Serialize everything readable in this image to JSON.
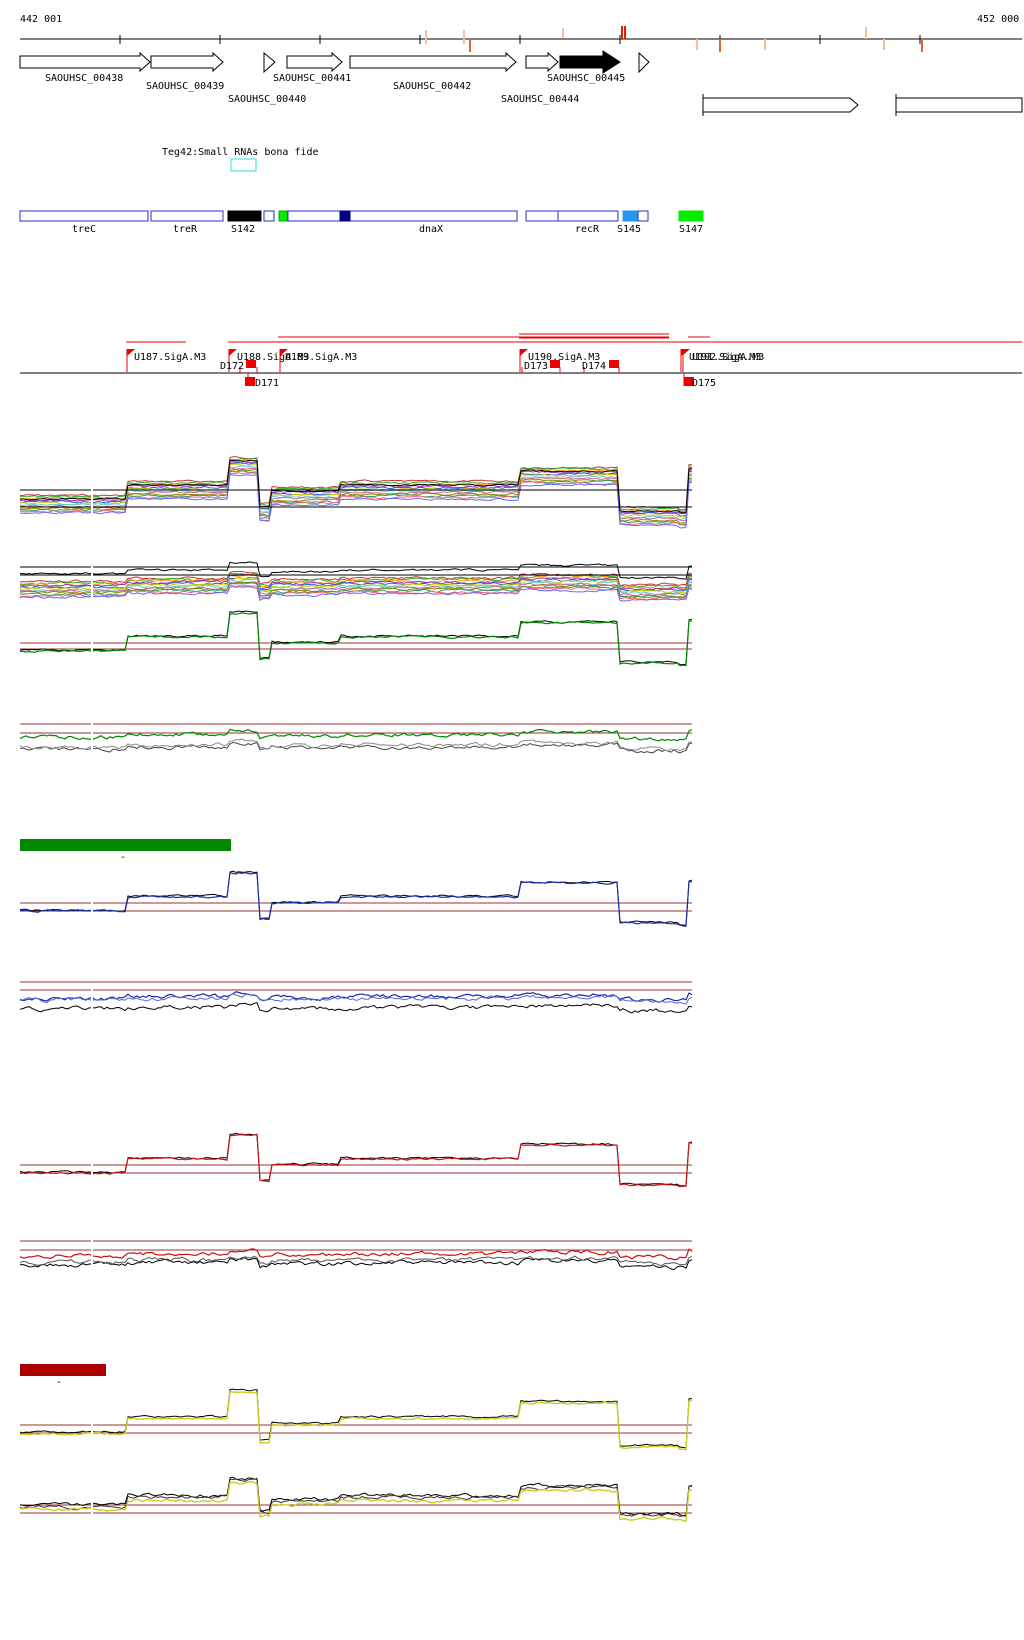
{
  "header": {
    "coord_start": "442 001",
    "coord_end": "452 000"
  },
  "genes": [
    "SAOUHSC_00438",
    "SAOUHSC_00439",
    "SAOUHSC_00440",
    "SAOUHSC_00441",
    "SAOUHSC_00442",
    "SAOUHSC_00444",
    "SAOUHSC_00445"
  ],
  "annotation_label": "Teg42:Small RNAs bona fide",
  "segments": [
    "treC",
    "treR",
    "S142",
    "dnaX",
    "recR",
    "S145",
    "S147"
  ],
  "promoters": [
    "U187.SigA.M3",
    "U188.SigA.M3",
    "U189.SigA.M3",
    "U190.SigA.M3",
    "U191.SigA.M3",
    "U192.SigA.M3"
  ],
  "terminators": [
    "D171",
    "D172",
    "D173",
    "D174",
    "D175"
  ],
  "legend_marks": [
    "-",
    "-"
  ],
  "colors": {
    "gene_filled": "#000000",
    "segment_outline": "#2233bb",
    "segment_dark_blue": "#000088",
    "segment_light_blue": "#2299ee",
    "segment_green": "#00ee00",
    "annotation_box": "#33dddd",
    "feature_red": "#ee0000",
    "bar_green": "#008800",
    "bar_dark_red": "#aa0000",
    "ref_line": "#993333",
    "track_green": "#008800",
    "track_blue": "#1a2ea8",
    "track_red": "#cc1111",
    "track_yellow": "#cccc22",
    "track_black": "#000000"
  }
}
